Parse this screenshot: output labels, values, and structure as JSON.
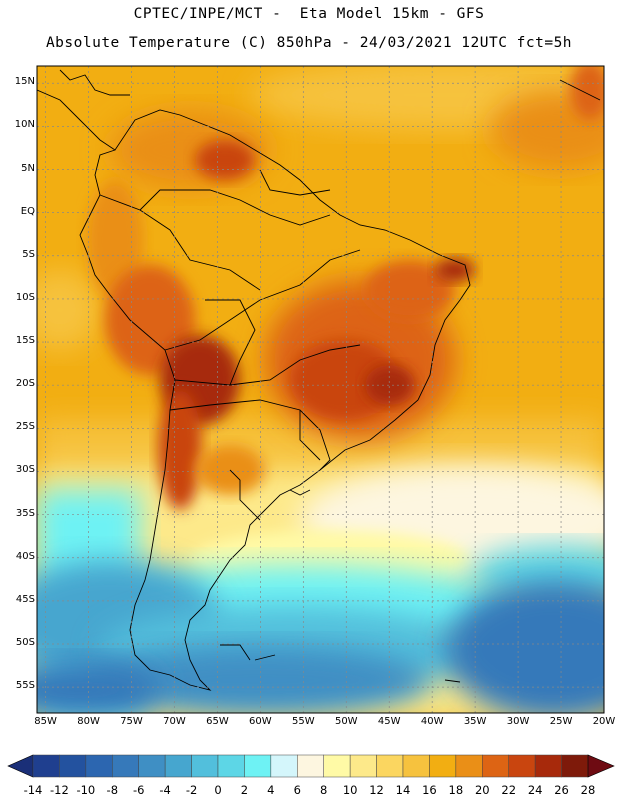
{
  "title_line1": "CPTEC/INPE/MCT -  Eta Model 15km - GFS",
  "title_line2": "Absolute Temperature (C) 850hPa - 24/03/2021 12UTC fct=5h",
  "lat_labels": [
    "15N",
    "10N",
    "5N",
    "EQ",
    "5S",
    "10S",
    "15S",
    "20S",
    "25S",
    "30S",
    "35S",
    "40S",
    "45S",
    "50S",
    "55S"
  ],
  "lon_labels": [
    "85W",
    "80W",
    "75W",
    "70W",
    "65W",
    "60W",
    "55W",
    "50W",
    "45W",
    "40W",
    "35W",
    "30W",
    "25W",
    "20W"
  ],
  "colorbar": {
    "labels": [
      "-14",
      "-12",
      "-10",
      "-8",
      "-6",
      "-4",
      "-2",
      "0",
      "2",
      "4",
      "6",
      "8",
      "10",
      "12",
      "14",
      "16",
      "18",
      "20",
      "22",
      "24",
      "26",
      "28"
    ],
    "colors": [
      "#1f3f8f",
      "#23529f",
      "#2c66b0",
      "#3679ba",
      "#3f8fc4",
      "#46a6cf",
      "#52bfdc",
      "#5dd6e6",
      "#6ef2f4",
      "#d4f6fb",
      "#fdf6e0",
      "#fffaa6",
      "#fde98a",
      "#fbd660",
      "#f6c23e",
      "#f2ae12",
      "#ea8f17",
      "#dd6414",
      "#c9450f",
      "#a7290b",
      "#7e1a0a"
    ],
    "low_end_color": "#1a2f78",
    "high_end_color": "#6e0b12"
  },
  "map": {
    "lat_range": [
      -58,
      17
    ],
    "lon_range": [
      -86,
      -20
    ],
    "grid": "dotted every 5 degrees"
  }
}
